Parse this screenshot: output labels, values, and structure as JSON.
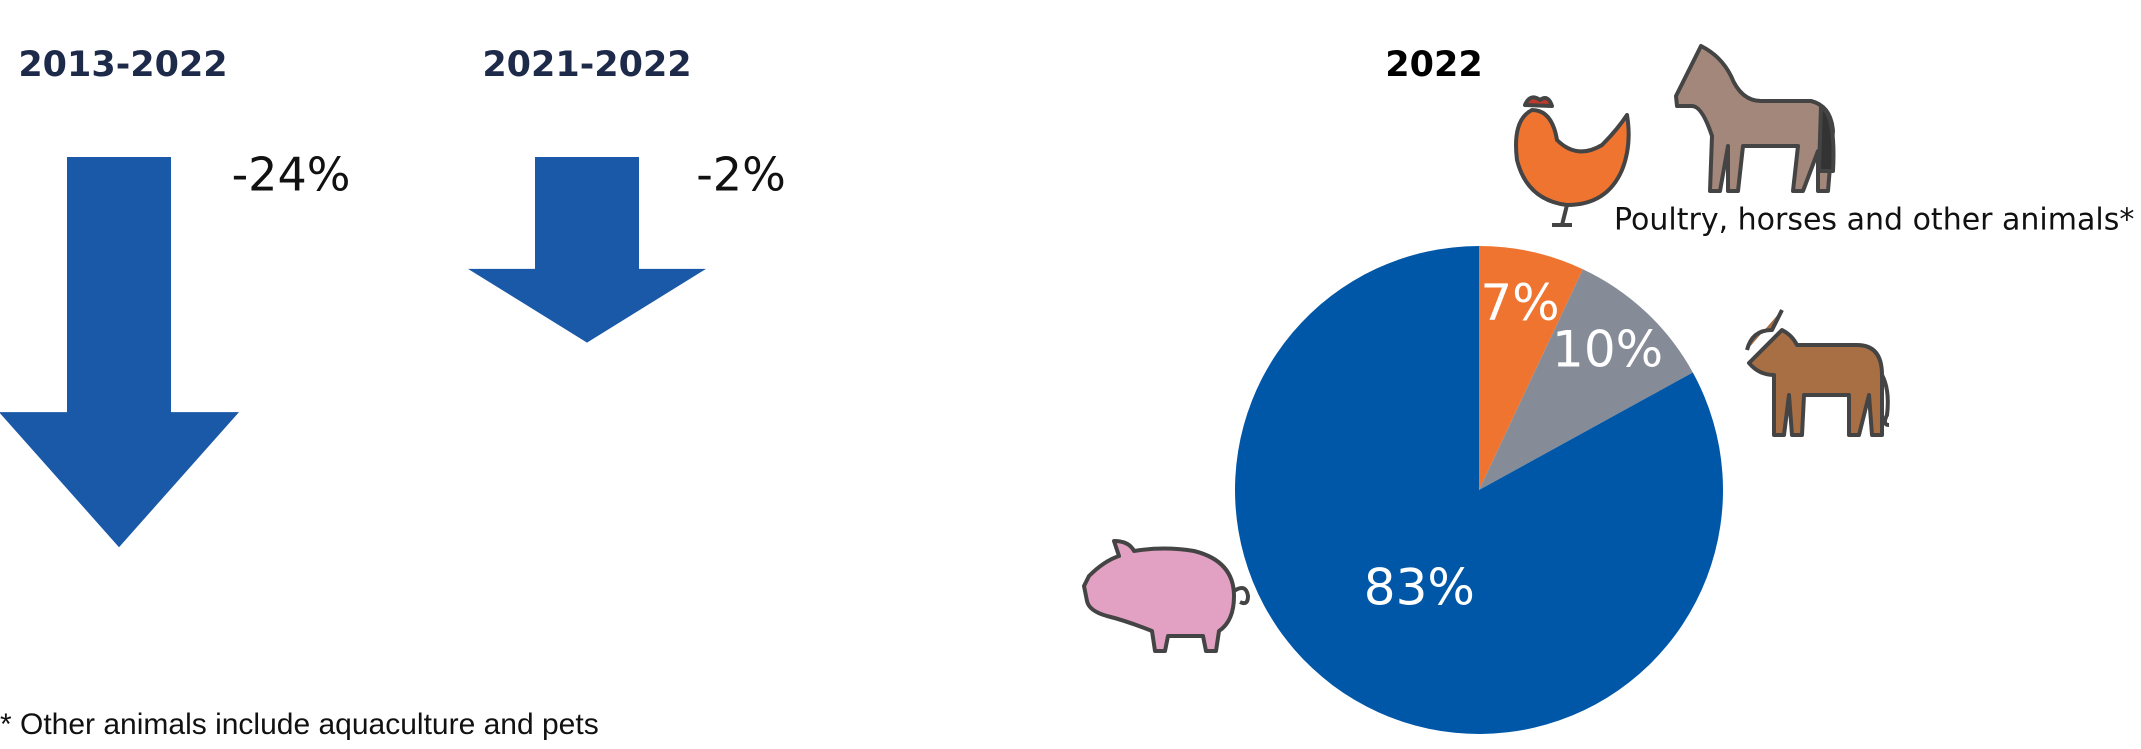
{
  "chart_data": [
    {
      "type": "arrow",
      "title": "2013-2022",
      "values": [
        -24
      ],
      "value_labels": [
        "-24%"
      ],
      "color": "#1a58a8"
    },
    {
      "type": "arrow",
      "title": "2021-2022",
      "values": [
        -2
      ],
      "value_labels": [
        "-2%"
      ],
      "color": "#1a58a8"
    },
    {
      "type": "pie",
      "title": "2022",
      "categories": [
        "Poultry, horses and other animals*",
        null,
        null
      ],
      "values": [
        7,
        10,
        83
      ],
      "value_labels": [
        "7%",
        "10%",
        "83%"
      ],
      "colors": [
        "#ef7430",
        "#868c97",
        "#0057a8"
      ],
      "note": "* Other animals include aquaculture and pets"
    }
  ]
}
